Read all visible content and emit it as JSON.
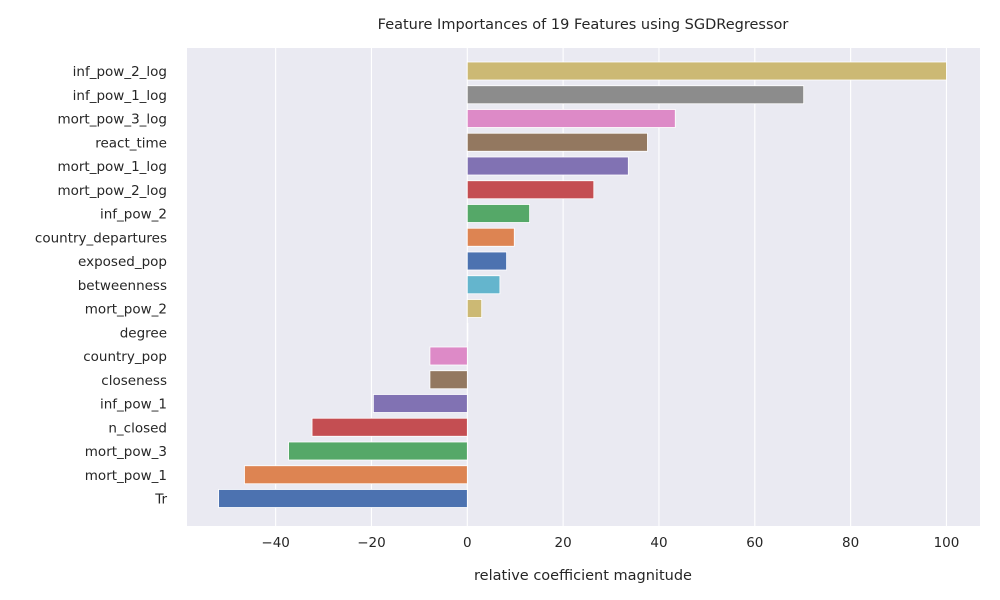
{
  "chart_data": {
    "type": "bar",
    "orientation": "horizontal",
    "title": "Feature Importances of 19 Features using SGDRegressor",
    "xlabel": "relative coefficient magnitude",
    "ylabel": "",
    "xlim": [
      -58.5,
      107
    ],
    "xticks": [
      -40,
      -20,
      0,
      20,
      40,
      60,
      80,
      100
    ],
    "xtick_labels": [
      "−40",
      "−20",
      "0",
      "20",
      "40",
      "60",
      "80",
      "100"
    ],
    "grid": true,
    "background": "#eaeaf2",
    "categories": [
      "inf_pow_2_log",
      "inf_pow_1_log",
      "mort_pow_3_log",
      "react_time",
      "mort_pow_1_log",
      "mort_pow_2_log",
      "inf_pow_2",
      "country_departures",
      "exposed_pop",
      "betweenness",
      "mort_pow_2",
      "degree",
      "country_pop",
      "closeness",
      "inf_pow_1",
      "n_closed",
      "mort_pow_3",
      "mort_pow_1",
      "Tr"
    ],
    "values": [
      100,
      70.2,
      43.4,
      37.6,
      33.6,
      26.4,
      13.0,
      9.8,
      8.2,
      6.8,
      3.0,
      0.1,
      -7.8,
      -7.8,
      -19.6,
      -32.4,
      -37.3,
      -46.5,
      -51.9
    ],
    "colors": [
      "#ccb974",
      "#8c8c8c",
      "#dd8ac7",
      "#937860",
      "#8172b3",
      "#c44e52",
      "#55a868",
      "#dd8452",
      "#4c72b0",
      "#64b5cd",
      "#ccb974",
      "#8c8c8c",
      "#dd8ac7",
      "#937860",
      "#8172b3",
      "#c44e52",
      "#55a868",
      "#dd8452",
      "#4c72b0"
    ]
  }
}
